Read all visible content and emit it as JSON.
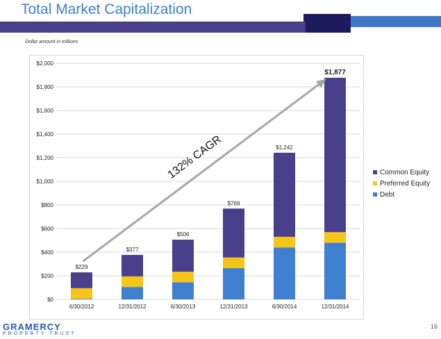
{
  "slide": {
    "title": "Total Market Capitalization",
    "subtitle": "Dollar amount in millions",
    "page_number": "16",
    "logo_main": "GRAMERCY",
    "logo_sub": "PROPERTY TRUST",
    "annotation": "132% CAGR"
  },
  "colors": {
    "common_equity": "#4a3f8a",
    "preferred_equity": "#f5c518",
    "debt": "#3f7fcf",
    "arrow": "#a6a6a6",
    "title": "#3b7fd1"
  },
  "chart_data": {
    "type": "bar",
    "stacked": true,
    "categories": [
      "6/30/2012",
      "12/31/2012",
      "6/30/2013",
      "12/31/2013",
      "6/30/2014",
      "12/31/2014"
    ],
    "series": [
      {
        "name": "Debt",
        "values": [
          5,
          105,
          145,
          265,
          440,
          480
        ]
      },
      {
        "name": "Preferred Equity",
        "values": [
          90,
          90,
          90,
          90,
          90,
          90
        ]
      },
      {
        "name": "Common Equity",
        "values": [
          134,
          182,
          271,
          414,
          712,
          1307
        ]
      }
    ],
    "totals": [
      229,
      377,
      506,
      769,
      1242,
      1877
    ],
    "total_labels": [
      "$229",
      "$377",
      "$506",
      "$769",
      "$1,242",
      "$1,877"
    ],
    "y_ticks": [
      "$0",
      "$200",
      "$400",
      "$600",
      "$800",
      "$1,000",
      "$1,200",
      "$1,400",
      "$1,600",
      "$1,800",
      "$2,000"
    ],
    "ylim": [
      0,
      2000
    ],
    "grid": true,
    "legend_position": "right",
    "legend_order": [
      "Common Equity",
      "Preferred Equity",
      "Debt"
    ]
  }
}
